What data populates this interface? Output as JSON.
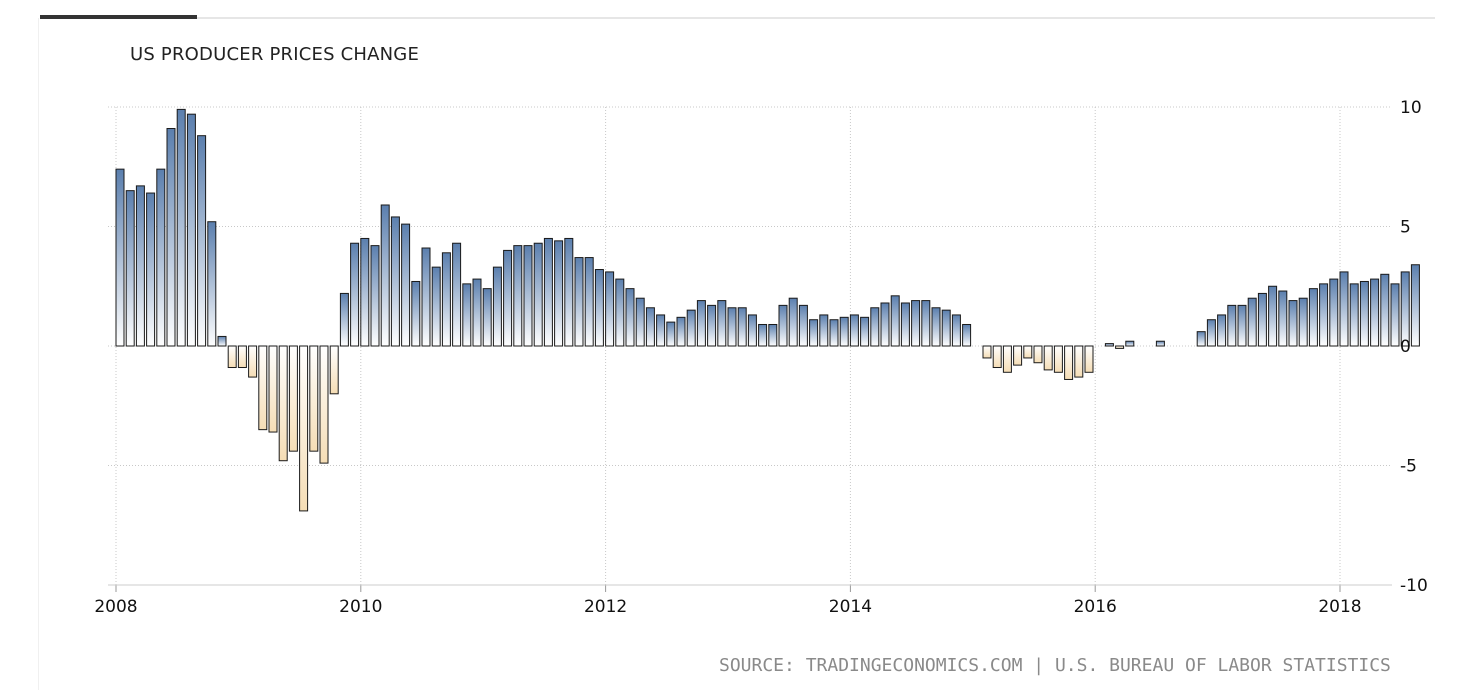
{
  "title": "US PRODUCER PRICES CHANGE",
  "source": "SOURCE: TRADINGECONOMICS.COM | U.S. BUREAU OF LABOR STATISTICS",
  "colors": {
    "positive_top": "#5b7fae",
    "positive_bottom": "#ffffff",
    "negative_top": "#ffffff",
    "negative_bottom": "#f5ddb5",
    "bar_stroke": "#1a1a1a",
    "grid": "#c8c8c8",
    "axis": "#cccccc"
  },
  "chart_data": {
    "type": "bar",
    "title": "US PRODUCER PRICES CHANGE",
    "xlabel": "",
    "ylabel": "",
    "ylim": [
      -10,
      10
    ],
    "y_ticks": [
      10,
      5,
      0,
      -5,
      -10
    ],
    "x_tick_labels": [
      "2008",
      "2010",
      "2012",
      "2014",
      "2016",
      "2018"
    ],
    "y_axis_position": "right",
    "grid": true,
    "legend": "none",
    "start": "2008-01",
    "frequency": "monthly",
    "values": [
      7.4,
      6.5,
      6.7,
      6.4,
      7.4,
      9.1,
      9.9,
      9.7,
      8.8,
      5.2,
      0.4,
      -0.9,
      -0.9,
      -1.3,
      -3.5,
      -3.6,
      -4.8,
      -4.4,
      -6.9,
      -4.4,
      -4.9,
      -2.0,
      2.2,
      4.3,
      4.5,
      4.2,
      5.9,
      5.4,
      5.1,
      2.7,
      4.1,
      3.3,
      3.9,
      4.3,
      2.6,
      2.8,
      2.4,
      3.3,
      4.0,
      4.2,
      4.2,
      4.3,
      4.5,
      4.4,
      4.5,
      3.7,
      3.7,
      3.2,
      3.1,
      2.8,
      2.4,
      2.0,
      1.6,
      1.3,
      1.0,
      1.2,
      1.5,
      1.9,
      1.7,
      1.9,
      1.6,
      1.6,
      1.3,
      0.9,
      0.9,
      1.7,
      2.0,
      1.7,
      1.1,
      1.3,
      1.1,
      1.2,
      1.3,
      1.2,
      1.6,
      1.8,
      2.1,
      1.8,
      1.9,
      1.9,
      1.6,
      1.5,
      1.3,
      0.9,
      0.0,
      -0.5,
      -0.9,
      -1.1,
      -0.8,
      -0.5,
      -0.7,
      -1.0,
      -1.1,
      -1.4,
      -1.3,
      -1.1,
      0.0,
      0.1,
      -0.1,
      0.2,
      0.0,
      0.0,
      0.2,
      0.0,
      0.0,
      0.0,
      0.6,
      1.1,
      1.3,
      1.7,
      1.7,
      2.0,
      2.2,
      2.5,
      2.3,
      1.9,
      2.0,
      2.4,
      2.6,
      2.8,
      3.1,
      2.6,
      2.7,
      2.8,
      3.0,
      2.6,
      3.1,
      3.4
    ]
  }
}
